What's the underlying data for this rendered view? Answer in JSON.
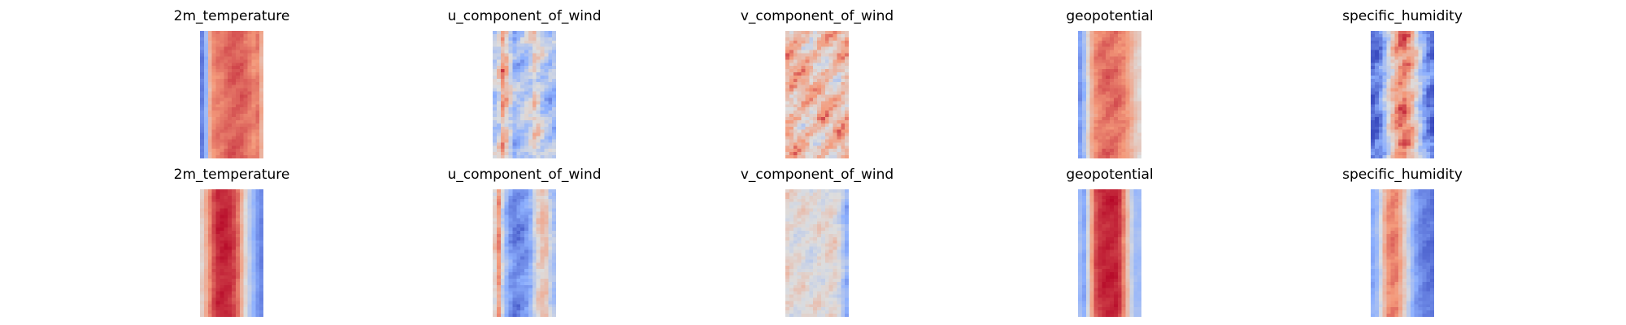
{
  "chart_data": {
    "type": "heatmap",
    "colormap": "coolwarm",
    "grid": false,
    "axes": "off",
    "rows": [
      {
        "panels": [
          {
            "title": "2m_temperature",
            "profile": [
              -0.85,
              -0.55,
              0.45,
              0.6,
              0.6,
              0.65,
              0.7,
              0.7,
              0.7,
              0.65,
              0.55,
              0.6,
              0.2
            ],
            "texture": 0.12,
            "seed": 11
          },
          {
            "title": "u_component_of_wind",
            "profile": [
              -0.3,
              -0.1,
              0.5,
              0.1,
              -0.35,
              -0.3,
              -0.25,
              -0.15,
              0.15,
              -0.1,
              -0.3,
              -0.35,
              -0.3
            ],
            "texture": 0.45,
            "seed": 23
          },
          {
            "title": "v_component_of_wind",
            "profile": [
              0.25,
              0.3,
              0.3,
              0.25,
              0.3,
              0.2,
              0.25,
              0.3,
              0.25,
              0.2,
              0.25,
              0.3,
              0.25
            ],
            "texture": 0.55,
            "seed": 37
          },
          {
            "title": "geopotential",
            "profile": [
              -0.7,
              -0.45,
              0.1,
              0.5,
              0.6,
              0.65,
              0.65,
              0.65,
              0.6,
              0.55,
              0.35,
              0.15,
              0.05
            ],
            "texture": 0.15,
            "seed": 41
          },
          {
            "title": "specific_humidity",
            "profile": [
              -0.9,
              -0.8,
              -0.6,
              -0.2,
              0.2,
              0.45,
              0.6,
              0.5,
              0.25,
              -0.1,
              -0.5,
              -0.75,
              -0.8
            ],
            "texture": 0.4,
            "seed": 53
          }
        ]
      },
      {
        "panels": [
          {
            "title": "2m_temperature",
            "profile": [
              0.0,
              0.3,
              0.6,
              0.85,
              0.9,
              0.9,
              0.85,
              0.7,
              0.3,
              -0.1,
              -0.4,
              -0.65,
              -0.75
            ],
            "texture": 0.1,
            "seed": 61
          },
          {
            "title": "u_component_of_wind",
            "profile": [
              -0.2,
              0.6,
              -0.2,
              -0.55,
              -0.7,
              -0.7,
              -0.65,
              -0.55,
              -0.1,
              0.2,
              0.25,
              -0.2,
              -0.35
            ],
            "texture": 0.25,
            "seed": 73
          },
          {
            "title": "v_component_of_wind",
            "profile": [
              0.1,
              0.05,
              0.0,
              0.05,
              0.0,
              -0.05,
              0.05,
              0.0,
              0.05,
              0.1,
              0.0,
              -0.3,
              -0.55
            ],
            "texture": 0.25,
            "seed": 89
          },
          {
            "title": "geopotential",
            "profile": [
              -0.25,
              -0.6,
              0.0,
              0.7,
              0.85,
              0.9,
              0.9,
              0.9,
              0.8,
              0.45,
              -0.1,
              -0.4,
              -0.35
            ],
            "texture": 0.1,
            "seed": 97
          },
          {
            "title": "specific_humidity",
            "profile": [
              -0.55,
              -0.45,
              0.0,
              0.5,
              0.6,
              0.55,
              0.3,
              -0.1,
              -0.45,
              -0.65,
              -0.75,
              -0.8,
              -0.8
            ],
            "texture": 0.15,
            "seed": 101
          }
        ]
      }
    ]
  }
}
